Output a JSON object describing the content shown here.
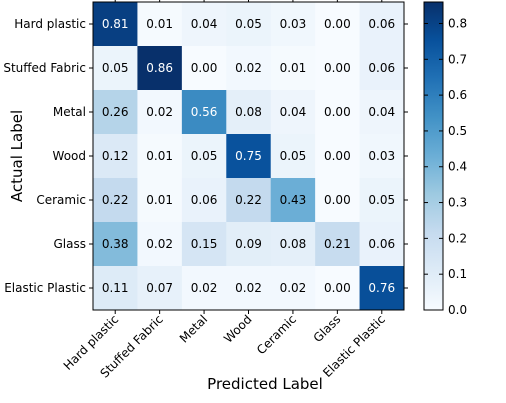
{
  "chart_data": {
    "type": "heatmap",
    "title": "",
    "xlabel": "Predicted Label",
    "ylabel": "Actual Label",
    "rows": [
      "Hard plastic",
      "Stuffed Fabric",
      "Metal",
      "Wood",
      "Ceramic",
      "Glass",
      "Elastic Plastic"
    ],
    "columns": [
      "Hard plastic",
      "Stuffed Fabric",
      "Metal",
      "Wood",
      "Ceramic",
      "Glass",
      "Elastic Plastic"
    ],
    "values": [
      [
        0.81,
        0.01,
        0.04,
        0.05,
        0.03,
        0.0,
        0.06
      ],
      [
        0.05,
        0.86,
        0.0,
        0.02,
        0.01,
        0.0,
        0.06
      ],
      [
        0.26,
        0.02,
        0.56,
        0.08,
        0.04,
        0.0,
        0.04
      ],
      [
        0.12,
        0.01,
        0.05,
        0.75,
        0.05,
        0.0,
        0.03
      ],
      [
        0.22,
        0.01,
        0.06,
        0.22,
        0.43,
        0.0,
        0.05
      ],
      [
        0.38,
        0.02,
        0.15,
        0.09,
        0.08,
        0.21,
        0.06
      ],
      [
        0.11,
        0.07,
        0.02,
        0.02,
        0.02,
        0.0,
        0.76
      ]
    ],
    "value_labels": [
      [
        "0.81",
        "0.01",
        "0.04",
        "0.05",
        "0.03",
        "0.00",
        "0.06"
      ],
      [
        "0.05",
        "0.86",
        "0.00",
        "0.02",
        "0.01",
        "0.00",
        "0.06"
      ],
      [
        "0.26",
        "0.02",
        "0.56",
        "0.08",
        "0.04",
        "0.00",
        "0.04"
      ],
      [
        "0.12",
        "0.01",
        "0.05",
        "0.75",
        "0.05",
        "0.00",
        "0.03"
      ],
      [
        "0.22",
        "0.01",
        "0.06",
        "0.22",
        "0.43",
        "0.00",
        "0.05"
      ],
      [
        "0.38",
        "0.02",
        "0.15",
        "0.09",
        "0.08",
        "0.21",
        "0.06"
      ],
      [
        "0.11",
        "0.07",
        "0.02",
        "0.02",
        "0.02",
        "0.00",
        "0.76"
      ]
    ],
    "colorbar": {
      "range": [
        0.0,
        0.86
      ],
      "ticks": [
        0.0,
        0.1,
        0.2,
        0.3,
        0.4,
        0.5,
        0.6,
        0.7,
        0.8
      ],
      "tick_labels": [
        "0.0",
        "0.1",
        "0.2",
        "0.3",
        "0.4",
        "0.5",
        "0.6",
        "0.7",
        "0.8"
      ],
      "colormap": "Blues",
      "colormap_low": "#f7fbff",
      "colormap_high": "#08306b"
    },
    "grid": false,
    "legend": "colorbar-right"
  }
}
